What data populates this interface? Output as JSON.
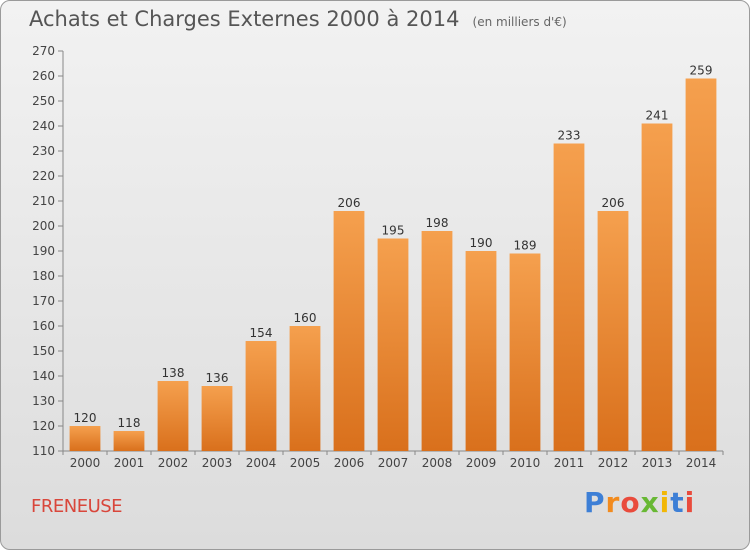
{
  "title": "Achats et Charges Externes 2000 à 2014",
  "subtitle": "(en milliers d'€)",
  "commune": "FRENEUSE",
  "logo": {
    "letters": [
      "P",
      "r",
      "o",
      "x",
      "i",
      "t",
      "i"
    ],
    "colors": [
      "#3d7fd6",
      "#f28b1e",
      "#e94b3c",
      "#68b834",
      "#f2b705",
      "#3d7fd6",
      "#e94b3c"
    ]
  },
  "colors": {
    "bar_top": "#f5a04e",
    "bar_bottom": "#d9701c",
    "title": "#555555",
    "commune": "#d9463b"
  },
  "chart_data": {
    "type": "bar",
    "categories": [
      "2000",
      "2001",
      "2002",
      "2003",
      "2004",
      "2005",
      "2006",
      "2007",
      "2008",
      "2009",
      "2010",
      "2011",
      "2012",
      "2013",
      "2014"
    ],
    "values": [
      120,
      118,
      138,
      136,
      154,
      160,
      206,
      195,
      198,
      190,
      189,
      233,
      206,
      241,
      259
    ],
    "ylim": [
      110,
      270
    ],
    "yticks": [
      110,
      120,
      130,
      140,
      150,
      160,
      170,
      180,
      190,
      200,
      210,
      220,
      230,
      240,
      250,
      260,
      270
    ],
    "grid": false,
    "legend": "none"
  }
}
